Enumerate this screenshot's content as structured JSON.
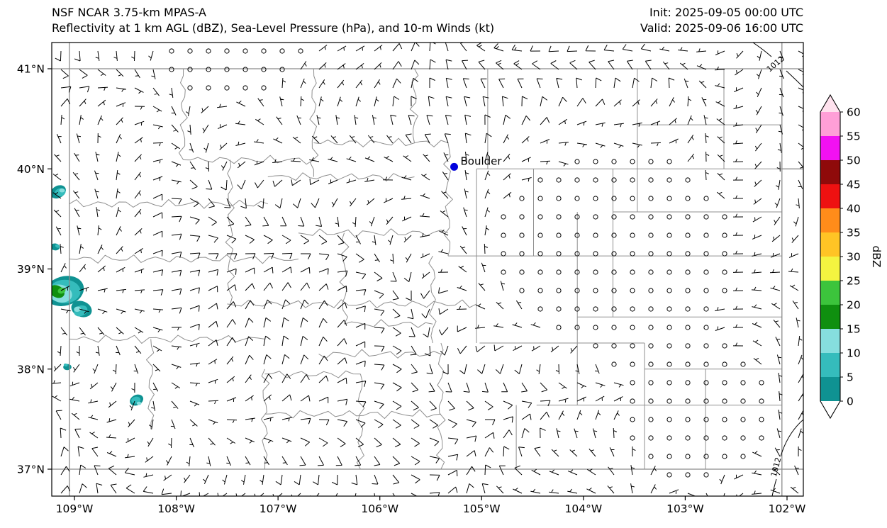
{
  "header": {
    "title_line1": "NSF NCAR 3.75-km MPAS-A",
    "title_line2": "Reflectivity at 1 km AGL (dBZ), Sea-Level Pressure (hPa), and 10-m Winds (kt)",
    "init": "Init: 2025-09-05 00:00 UTC",
    "valid": "Valid: 2025-09-06 16:00 UTC"
  },
  "chart_data": {
    "type": "heatmap",
    "subtype": "weather-model-forecast-map",
    "model": "NSF NCAR 3.75-km MPAS-A",
    "fields": [
      "Reflectivity at 1 km AGL (dBZ)",
      "Sea-Level Pressure (hPa)",
      "10-m Winds (kt)"
    ],
    "region": "Colorado, USA",
    "extent": {
      "lon_min": -109.22,
      "lon_max": -101.84,
      "lat_min": 36.73,
      "lat_max": 41.26
    },
    "x_axis": {
      "tick_labels": [
        "109°W",
        "108°W",
        "107°W",
        "106°W",
        "105°W",
        "104°W",
        "103°W",
        "102°W"
      ],
      "tick_lons": [
        -109,
        -108,
        -107,
        -106,
        -105,
        -104,
        -103,
        -102
      ]
    },
    "y_axis": {
      "tick_labels": [
        "37°N",
        "38°N",
        "39°N",
        "40°N",
        "41°N"
      ],
      "tick_lats": [
        37,
        38,
        39,
        40,
        41
      ]
    },
    "colorbar": {
      "label": "dBZ",
      "tick_values": [
        0,
        5,
        10,
        15,
        20,
        25,
        30,
        35,
        40,
        45,
        50,
        55,
        60
      ],
      "segment_colors": [
        "#0f9292",
        "#35bcbc",
        "#86dede",
        "#0f8f0f",
        "#3cc43c",
        "#f4f440",
        "#ffc425",
        "#ff8c1a",
        "#ee1111",
        "#8f0a0a",
        "#f211f2",
        "#ff9fd7"
      ],
      "under_color": "#ffffff",
      "over_color": "#ffe2ee"
    },
    "city_marker": {
      "label": "Boulder",
      "lon": -105.27,
      "lat": 40.02,
      "color": "#0000dd"
    },
    "pressure_contours": [
      {
        "label": "1012",
        "location": "top-right-corner"
      },
      {
        "label": "1012",
        "location": "bottom-right-corner"
      }
    ],
    "reflectivity_cells": [
      {
        "lon": -109.16,
        "lat": 39.77,
        "max_dbz": 10,
        "radius_deg": 0.07
      },
      {
        "lon": -109.19,
        "lat": 39.22,
        "max_dbz": 5,
        "radius_deg": 0.04
      },
      {
        "lon": -109.1,
        "lat": 38.78,
        "max_dbz": 22,
        "radius_deg": 0.17
      },
      {
        "lon": -108.93,
        "lat": 38.6,
        "max_dbz": 12,
        "radius_deg": 0.09
      },
      {
        "lon": -109.07,
        "lat": 38.02,
        "max_dbz": 6,
        "radius_deg": 0.035
      },
      {
        "lon": -108.39,
        "lat": 37.69,
        "max_dbz": 14,
        "radius_deg": 0.06
      }
    ],
    "wind_barbs": {
      "units": "kt",
      "symbol_calm": "open-circle",
      "grid_spacing_px": 26,
      "typical_speed_range_kt": [
        0,
        15
      ],
      "barb_color": "#000000",
      "note": "Open circles denote calm winds; barbs in knots (half=5, full=10)."
    }
  },
  "styles": {
    "background": "#ffffff",
    "frame_color": "#000000",
    "county_line_color": "#8f8f8f",
    "state_line_color": "#8a8a8a",
    "contour_color": "#000000",
    "text_color": "#000000"
  }
}
